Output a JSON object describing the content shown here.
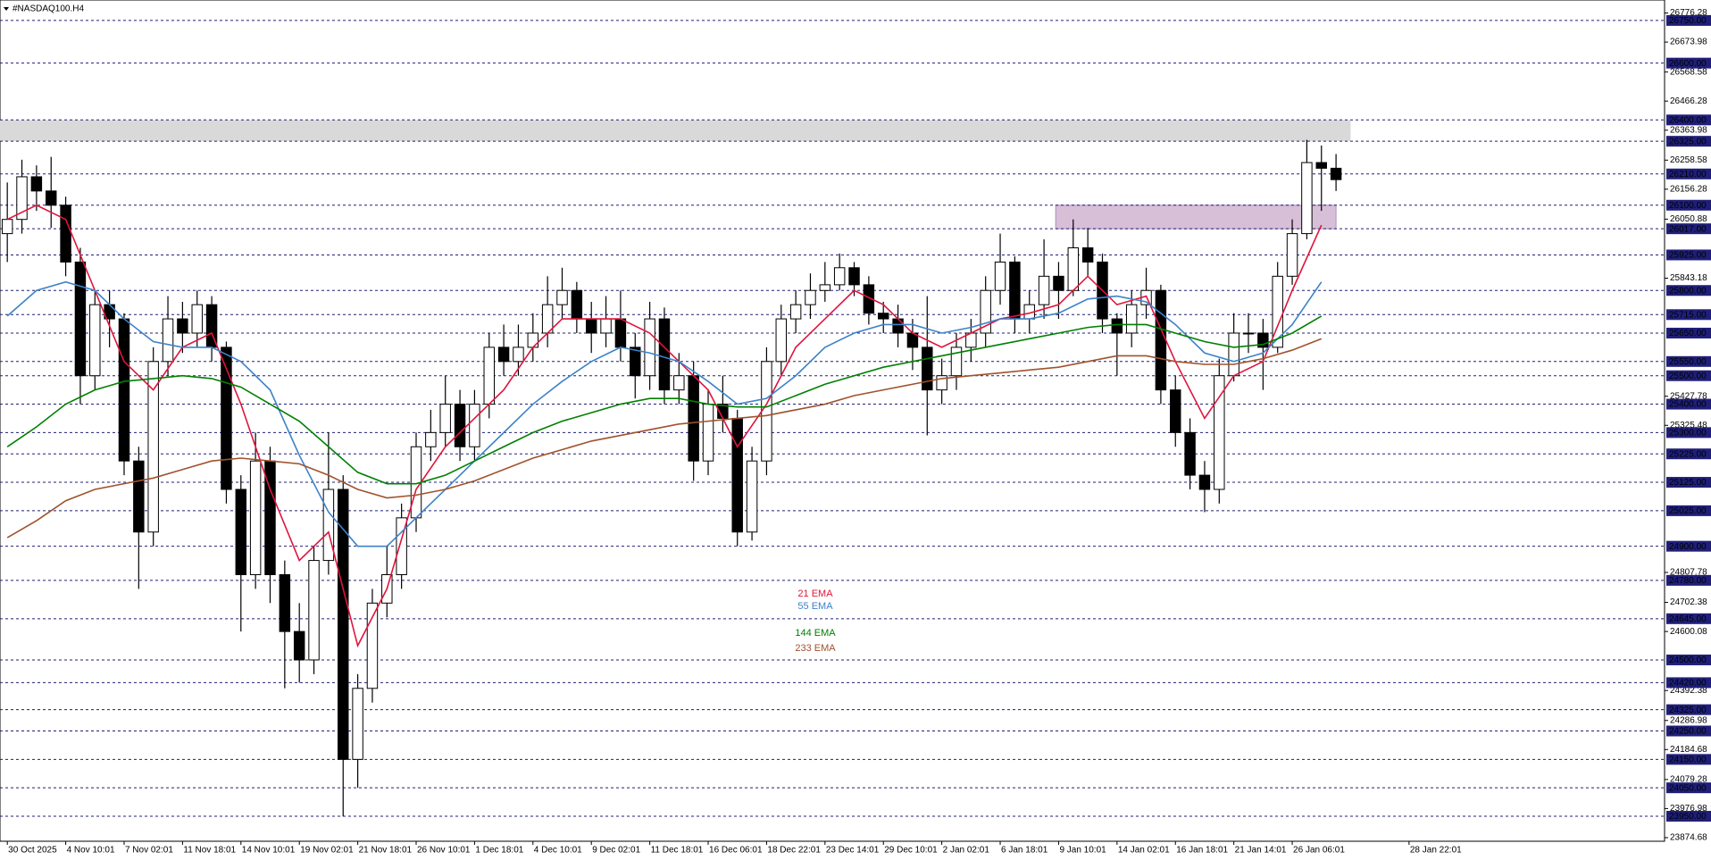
{
  "chart_data": {
    "type": "candlestick",
    "title": "#NASDAQ100.H4",
    "ylim": [
      23862,
      26822
    ],
    "xlim": [
      -0.5,
      113.5
    ],
    "yticks": [
      26776.28,
      26673.98,
      26568.58,
      26466.28,
      26363.98,
      26258.58,
      26156.28,
      26050.88,
      25843.18,
      25427.78,
      25325.48,
      24807.78,
      24702.38,
      24600.08,
      24392.38,
      24286.98,
      24184.68,
      24079.28,
      23976.98,
      23874.68
    ],
    "levels": [
      {
        "value": 26750,
        "label": "26750.00"
      },
      {
        "value": 26600,
        "label": "26600.00"
      },
      {
        "value": 26400,
        "label": "26400.00"
      },
      {
        "value": 26325,
        "label": "26325.00"
      },
      {
        "value": 26210,
        "label": "26210.00"
      },
      {
        "value": 26100,
        "label": "26100.00"
      },
      {
        "value": 26017,
        "label": "26017.00"
      },
      {
        "value": 25925,
        "label": "25925.00"
      },
      {
        "value": 25800,
        "label": "25800.00"
      },
      {
        "value": 25715,
        "label": "25715.00"
      },
      {
        "value": 25650,
        "label": "25650.00"
      },
      {
        "value": 25550,
        "label": "25550.00"
      },
      {
        "value": 25500,
        "label": "25500.00"
      },
      {
        "value": 25400,
        "label": "25400.00"
      },
      {
        "value": 25300,
        "label": "25300.00"
      },
      {
        "value": 25225,
        "label": "25225.00"
      },
      {
        "value": 25125,
        "label": "25125.00"
      },
      {
        "value": 25025,
        "label": "25025.00"
      },
      {
        "value": 24900,
        "label": "24900.00"
      },
      {
        "value": 24780,
        "label": "24780.00"
      },
      {
        "value": 24645,
        "label": "24645.00"
      },
      {
        "value": 24500,
        "label": "24500.00"
      },
      {
        "value": 24420,
        "label": "24420.00"
      },
      {
        "value": 24325,
        "label": "24325.00"
      },
      {
        "value": 24250,
        "label": "24250.00"
      },
      {
        "value": 24150,
        "label": "24150.00"
      },
      {
        "value": 24050,
        "label": "24050.00"
      },
      {
        "value": 23950,
        "label": "23950.00"
      }
    ],
    "level_color": "#1f1f7a",
    "zones": [
      {
        "low": 26325,
        "high": 26400,
        "start": -0.5,
        "end": 92,
        "color": "#d9d9d9"
      },
      {
        "low": 26017,
        "high": 26100,
        "start": 71.8,
        "end": 91,
        "color": "#d8bfd8"
      }
    ],
    "xticks": [
      {
        "value": 0,
        "label": "30 Oct 2025"
      },
      {
        "value": 4,
        "label": "4 Nov 10:01"
      },
      {
        "value": 8,
        "label": "7 Nov 02:01"
      },
      {
        "value": 12,
        "label": "11 Nov 18:01"
      },
      {
        "value": 16,
        "label": "14 Nov 10:01"
      },
      {
        "value": 20,
        "label": "19 Nov 02:01"
      },
      {
        "value": 24,
        "label": "21 Nov 18:01"
      },
      {
        "value": 28,
        "label": "26 Nov 10:01"
      },
      {
        "value": 32,
        "label": "1 Dec 18:01"
      },
      {
        "value": 36,
        "label": "4 Dec 10:01"
      },
      {
        "value": 40,
        "label": "9 Dec 02:01"
      },
      {
        "value": 44,
        "label": "11 Dec 18:01"
      },
      {
        "value": 48,
        "label": "16 Dec 06:01"
      },
      {
        "value": 52,
        "label": "18 Dec 22:01"
      },
      {
        "value": 56,
        "label": "23 Dec 14:01"
      },
      {
        "value": 60,
        "label": "29 Dec 10:01"
      },
      {
        "value": 64,
        "label": "2 Jan 02:01"
      },
      {
        "value": 68,
        "label": "6 Jan 18:01"
      },
      {
        "value": 72,
        "label": "9 Jan 10:01"
      },
      {
        "value": 76,
        "label": "14 Jan 02:01"
      },
      {
        "value": 80,
        "label": "16 Jan 18:01"
      },
      {
        "value": 84,
        "label": "21 Jan 14:01"
      },
      {
        "value": 88,
        "label": "26 Jan 06:01"
      },
      {
        "value": 96,
        "label": "28 Jan 22:01"
      }
    ],
    "ohlc": [
      [
        26000,
        26180,
        25900,
        26050
      ],
      [
        26050,
        26260,
        26000,
        26200
      ],
      [
        26200,
        26240,
        26080,
        26150
      ],
      [
        26150,
        26270,
        26020,
        26100
      ],
      [
        26100,
        26130,
        25850,
        25900
      ],
      [
        25900,
        25950,
        25400,
        25500
      ],
      [
        25500,
        25800,
        25450,
        25750
      ],
      [
        25750,
        25800,
        25600,
        25700
      ],
      [
        25700,
        25720,
        25150,
        25200
      ],
      [
        25200,
        25250,
        24750,
        24950
      ],
      [
        24950,
        25600,
        24900,
        25550
      ],
      [
        25550,
        25780,
        25500,
        25700
      ],
      [
        25700,
        25760,
        25580,
        25650
      ],
      [
        25650,
        25800,
        25600,
        25750
      ],
      [
        25750,
        25780,
        25550,
        25600
      ],
      [
        25600,
        25620,
        25050,
        25100
      ],
      [
        25100,
        25150,
        24600,
        24800
      ],
      [
        24800,
        25300,
        24750,
        25200
      ],
      [
        25200,
        25250,
        24700,
        24800
      ],
      [
        24800,
        24850,
        24400,
        24600
      ],
      [
        24600,
        24700,
        24420,
        24500
      ],
      [
        24500,
        24900,
        24450,
        24850
      ],
      [
        24850,
        25300,
        24800,
        25100
      ],
      [
        25100,
        25150,
        23950,
        24150
      ],
      [
        24150,
        24450,
        24050,
        24400
      ],
      [
        24400,
        24750,
        24350,
        24700
      ],
      [
        24700,
        24900,
        24650,
        24800
      ],
      [
        24800,
        25050,
        24750,
        25000
      ],
      [
        25000,
        25300,
        24950,
        25250
      ],
      [
        25250,
        25380,
        25200,
        25300
      ],
      [
        25300,
        25500,
        25250,
        25400
      ],
      [
        25400,
        25450,
        25200,
        25250
      ],
      [
        25250,
        25450,
        25200,
        25400
      ],
      [
        25400,
        25650,
        25350,
        25600
      ],
      [
        25600,
        25680,
        25500,
        25550
      ],
      [
        25550,
        25680,
        25500,
        25600
      ],
      [
        25600,
        25720,
        25550,
        25650
      ],
      [
        25650,
        25850,
        25600,
        25750
      ],
      [
        25750,
        25880,
        25700,
        25800
      ],
      [
        25800,
        25830,
        25650,
        25700
      ],
      [
        25700,
        25760,
        25580,
        25650
      ],
      [
        25650,
        25780,
        25600,
        25700
      ],
      [
        25700,
        25800,
        25550,
        25600
      ],
      [
        25600,
        25650,
        25420,
        25500
      ],
      [
        25500,
        25760,
        25450,
        25700
      ],
      [
        25700,
        25740,
        25400,
        25450
      ],
      [
        25450,
        25580,
        25400,
        25500
      ],
      [
        25500,
        25550,
        25130,
        25200
      ],
      [
        25200,
        25450,
        25150,
        25400
      ],
      [
        25400,
        25500,
        25300,
        25350
      ],
      [
        25350,
        25380,
        24900,
        24950
      ],
      [
        24950,
        25250,
        24920,
        25200
      ],
      [
        25200,
        25600,
        25150,
        25550
      ],
      [
        25550,
        25750,
        25500,
        25700
      ],
      [
        25700,
        25800,
        25650,
        25750
      ],
      [
        25750,
        25860,
        25700,
        25800
      ],
      [
        25800,
        25900,
        25760,
        25820
      ],
      [
        25820,
        25930,
        25800,
        25880
      ],
      [
        25880,
        25900,
        25780,
        25820
      ],
      [
        25820,
        25850,
        25680,
        25720
      ],
      [
        25720,
        25760,
        25650,
        25700
      ],
      [
        25700,
        25750,
        25600,
        25650
      ],
      [
        25650,
        25700,
        25520,
        25600
      ],
      [
        25600,
        25780,
        25290,
        25450
      ],
      [
        25450,
        25560,
        25400,
        25500
      ],
      [
        25500,
        25650,
        25450,
        25600
      ],
      [
        25600,
        25700,
        25550,
        25650
      ],
      [
        25650,
        25850,
        25600,
        25800
      ],
      [
        25800,
        26000,
        25750,
        25900
      ],
      [
        25900,
        25920,
        25650,
        25700
      ],
      [
        25700,
        25800,
        25650,
        25750
      ],
      [
        25750,
        25980,
        25700,
        25850
      ],
      [
        25850,
        25900,
        25700,
        25800
      ],
      [
        25800,
        26050,
        25780,
        25950
      ],
      [
        25950,
        26020,
        25850,
        25900
      ],
      [
        25900,
        25930,
        25650,
        25700
      ],
      [
        25700,
        25720,
        25500,
        25650
      ],
      [
        25650,
        25800,
        25600,
        25750
      ],
      [
        25750,
        25880,
        25700,
        25800
      ],
      [
        25800,
        25820,
        25400,
        25450
      ],
      [
        25450,
        25500,
        25250,
        25300
      ],
      [
        25300,
        25350,
        25100,
        25150
      ],
      [
        25150,
        25200,
        25020,
        25100
      ],
      [
        25100,
        25560,
        25050,
        25500
      ],
      [
        25500,
        25720,
        25480,
        25650
      ],
      [
        25650,
        25720,
        25580,
        25650
      ],
      [
        25650,
        25700,
        25450,
        25600
      ],
      [
        25600,
        25900,
        25580,
        25850
      ],
      [
        25850,
        26050,
        25820,
        26000
      ],
      [
        26000,
        26330,
        25980,
        26250
      ],
      [
        26250,
        26310,
        26080,
        26230
      ],
      [
        26230,
        26280,
        26150,
        26190
      ]
    ],
    "ema_x": [
      0,
      2,
      4,
      6,
      8,
      10,
      12,
      14,
      16,
      18,
      20,
      22,
      24,
      26,
      28,
      30,
      32,
      34,
      36,
      38,
      40,
      42,
      44,
      46,
      48,
      50,
      52,
      54,
      56,
      58,
      60,
      62,
      64,
      66,
      68,
      70,
      72,
      74,
      76,
      78,
      80,
      82,
      84,
      86,
      88,
      90
    ],
    "series": [
      {
        "name": "21 EMA",
        "color": "#e0143c",
        "values": [
          26050,
          26100,
          26050,
          25800,
          25550,
          25450,
          25600,
          25650,
          25400,
          25100,
          24850,
          24950,
          24550,
          24750,
          25100,
          25250,
          25350,
          25450,
          25600,
          25700,
          25700,
          25700,
          25650,
          25550,
          25450,
          25250,
          25400,
          25600,
          25700,
          25800,
          25750,
          25650,
          25600,
          25650,
          25700,
          25720,
          25750,
          25850,
          25750,
          25780,
          25550,
          25350,
          25500,
          25550,
          25800,
          26030
        ]
      },
      {
        "name": "55 EMA",
        "color": "#3c82c8",
        "values": [
          25710,
          25800,
          25830,
          25800,
          25700,
          25620,
          25600,
          25600,
          25550,
          25450,
          25220,
          25020,
          24900,
          24900,
          25000,
          25100,
          25200,
          25300,
          25400,
          25480,
          25550,
          25600,
          25580,
          25550,
          25480,
          25400,
          25420,
          25500,
          25600,
          25650,
          25680,
          25680,
          25650,
          25670,
          25700,
          25700,
          25720,
          25770,
          25780,
          25760,
          25680,
          25580,
          25550,
          25580,
          25680,
          25830
        ]
      },
      {
        "name": "144 EMA",
        "color": "#008000",
        "values": [
          25250,
          25320,
          25400,
          25450,
          25480,
          25490,
          25500,
          25490,
          25460,
          25400,
          25340,
          25250,
          25160,
          25120,
          25120,
          25150,
          25200,
          25250,
          25300,
          25340,
          25370,
          25400,
          25420,
          25420,
          25400,
          25390,
          25390,
          25430,
          25470,
          25500,
          25530,
          25550,
          25570,
          25590,
          25610,
          25630,
          25650,
          25670,
          25680,
          25680,
          25650,
          25620,
          25600,
          25610,
          25650,
          25710
        ]
      },
      {
        "name": "233 EMA",
        "color": "#a0522d",
        "values": [
          24930,
          24990,
          25060,
          25100,
          25120,
          25140,
          25170,
          25200,
          25210,
          25200,
          25190,
          25150,
          25100,
          25070,
          25080,
          25100,
          25130,
          25170,
          25210,
          25240,
          25270,
          25290,
          25310,
          25330,
          25340,
          25350,
          25360,
          25380,
          25400,
          25430,
          25450,
          25470,
          25490,
          25500,
          25510,
          25520,
          25530,
          25550,
          25570,
          25570,
          25550,
          25540,
          25540,
          25560,
          25590,
          25630
        ]
      }
    ]
  }
}
